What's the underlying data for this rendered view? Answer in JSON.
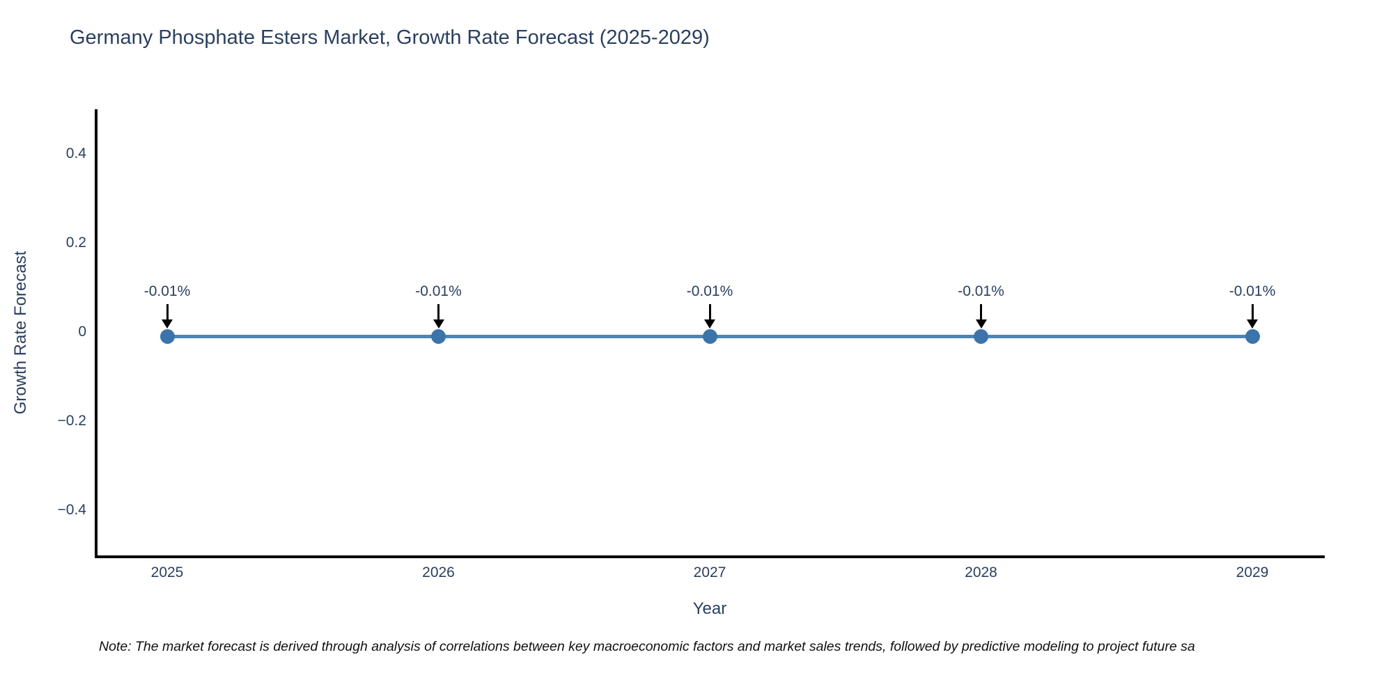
{
  "title": "Germany Phosphate Esters Market, Growth Rate Forecast (2025-2029)",
  "note": "Note: The market forecast is derived through analysis of correlations between key macroeconomic factors and market sales trends, followed by predictive modeling to project future sa",
  "chart_data": {
    "type": "line",
    "title": "Germany Phosphate Esters Market, Growth Rate Forecast (2025-2029)",
    "xlabel": "Year",
    "ylabel": "Growth Rate Forecast",
    "categories": [
      "2025",
      "2026",
      "2027",
      "2028",
      "2029"
    ],
    "series": [
      {
        "name": "Growth Rate Forecast",
        "values": [
          -0.01,
          -0.01,
          -0.01,
          -0.01,
          -0.01
        ]
      }
    ],
    "point_labels": [
      "-0.01%",
      "-0.01%",
      "-0.01%",
      "-0.01%",
      "-0.01%"
    ],
    "ylim": [
      -0.5,
      0.5
    ],
    "yticks": [
      0.4,
      0.2,
      0,
      -0.2,
      -0.4
    ],
    "ytick_labels": [
      "0.4",
      "0.2",
      "0",
      "−0.2",
      "−0.4"
    ],
    "grid": false,
    "legend_position": "none",
    "line_color": "#4d84b2",
    "marker_color": "#3a74aa",
    "axis_color": "#000000",
    "arrow_color": "#000000",
    "text_color": "#2a3f5f"
  }
}
